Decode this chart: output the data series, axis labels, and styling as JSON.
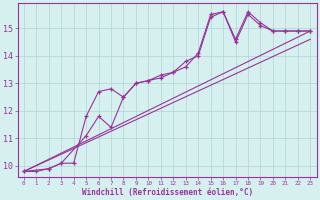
{
  "xlabel": "Windchill (Refroidissement éolien,°C)",
  "background_color": "#d6f0f0",
  "grid_color": "#b0d4d4",
  "line_color": "#993399",
  "xlim": [
    -0.5,
    23.5
  ],
  "ylim": [
    9.6,
    15.9
  ],
  "yticks": [
    10,
    11,
    12,
    13,
    14,
    15
  ],
  "xticks": [
    0,
    1,
    2,
    3,
    4,
    5,
    6,
    7,
    8,
    9,
    10,
    11,
    12,
    13,
    14,
    15,
    16,
    17,
    18,
    19,
    20,
    21,
    22,
    23
  ],
  "line1_x": [
    0,
    1,
    2,
    3,
    4,
    5,
    6,
    7,
    8,
    9,
    10,
    11,
    12,
    13,
    14,
    15,
    16,
    17,
    18,
    19,
    20,
    21,
    22,
    23
  ],
  "line1_y": [
    9.8,
    9.8,
    9.9,
    10.1,
    10.1,
    11.8,
    12.7,
    12.8,
    12.5,
    13.0,
    13.1,
    13.2,
    13.4,
    13.6,
    14.1,
    15.5,
    15.6,
    14.6,
    15.6,
    15.2,
    14.9,
    14.9,
    14.9,
    14.9
  ],
  "line2_x": [
    0,
    2,
    3,
    5,
    6,
    7,
    8,
    9,
    10,
    11,
    12,
    13,
    14,
    15,
    16,
    17,
    18,
    19,
    20,
    21,
    22,
    23
  ],
  "line2_y": [
    9.8,
    9.9,
    10.1,
    11.1,
    11.8,
    11.4,
    12.5,
    13.0,
    13.1,
    13.3,
    13.4,
    13.8,
    14.0,
    15.4,
    15.6,
    14.5,
    15.5,
    15.1,
    14.9,
    14.9,
    14.9,
    14.9
  ],
  "regline1_x": [
    0,
    23
  ],
  "regline1_y": [
    9.8,
    14.9
  ],
  "regline2_x": [
    0,
    23
  ],
  "regline2_y": [
    9.8,
    14.6
  ]
}
